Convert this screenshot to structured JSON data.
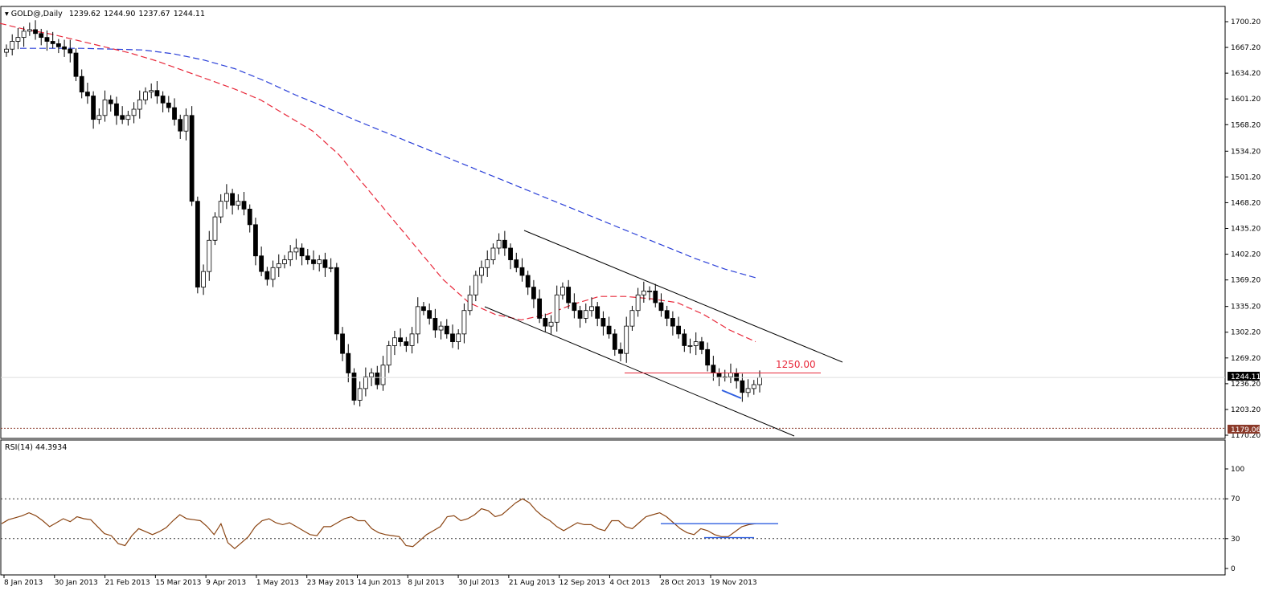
{
  "header": {
    "symbol": "GOLD@,Daily",
    "open": "1239.62",
    "high": "1244.90",
    "low": "1237.67",
    "close": "1244.11"
  },
  "rsi_header": "RSI(14) 44.3934",
  "price_badge": "1244.11",
  "support_badge": "1179.06",
  "resistance_label": "1250.00",
  "colors": {
    "ma_fast": "#e8283a",
    "ma_slow": "#2a3fd8",
    "rsi_line": "#8b4513",
    "trend_blue": "#2f5fe0",
    "level_red": "#e8283a",
    "candle": "#000000"
  },
  "chart_data": [
    {
      "type": "candlestick",
      "symbol": "GOLD@",
      "timeframe": "Daily",
      "ylim": [
        1170.2,
        1716.0
      ],
      "y_ticks": [
        "1700.20",
        "1667.20",
        "1634.20",
        "1601.20",
        "1568.20",
        "1534.20",
        "1501.20",
        "1468.20",
        "1435.20",
        "1402.20",
        "1369.20",
        "1335.20",
        "1302.20",
        "1269.20",
        "1236.20",
        "1203.20",
        "1170.20"
      ],
      "x_ticks": [
        "8 Jan 2013",
        "30 Jan 2013",
        "21 Feb 2013",
        "15 Mar 2013",
        "9 Apr 2013",
        "1 May 2013",
        "23 May 2013",
        "14 Jun 2013",
        "8 Jul 2013",
        "30 Jul 2013",
        "21 Aug 2013",
        "12 Sep 2013",
        "4 Oct 2013",
        "28 Oct 2013",
        "19 Nov 2013"
      ],
      "close_series": [
        1665,
        1675,
        1680,
        1688,
        1690,
        1685,
        1680,
        1675,
        1672,
        1668,
        1665,
        1660,
        1630,
        1610,
        1605,
        1575,
        1580,
        1600,
        1595,
        1580,
        1575,
        1580,
        1588,
        1600,
        1610,
        1612,
        1605,
        1596,
        1590,
        1575,
        1560,
        1580,
        1470,
        1360,
        1380,
        1420,
        1450,
        1470,
        1480,
        1465,
        1470,
        1460,
        1440,
        1400,
        1380,
        1370,
        1385,
        1390,
        1395,
        1405,
        1410,
        1400,
        1395,
        1390,
        1395,
        1385,
        1385,
        1300,
        1275,
        1250,
        1215,
        1230,
        1245,
        1250,
        1235,
        1260,
        1285,
        1295,
        1290,
        1285,
        1300,
        1335,
        1330,
        1320,
        1305,
        1310,
        1300,
        1290,
        1300,
        1330,
        1350,
        1375,
        1385,
        1395,
        1410,
        1420,
        1410,
        1395,
        1385,
        1375,
        1360,
        1345,
        1320,
        1310,
        1315,
        1350,
        1360,
        1340,
        1330,
        1320,
        1330,
        1335,
        1320,
        1310,
        1300,
        1280,
        1275,
        1310,
        1330,
        1350,
        1355,
        1355,
        1340,
        1330,
        1320,
        1310,
        1300,
        1285,
        1285,
        1290,
        1280,
        1260,
        1250,
        1245,
        1245,
        1250,
        1240,
        1225,
        1230,
        1235,
        1244.11
      ],
      "candle_ohlc_last": {
        "open": 1239.62,
        "high": 1244.9,
        "low": 1237.67,
        "close": 1244.11
      },
      "ma_fast_series": [
        1698,
        1690,
        1684,
        1676,
        1668,
        1660,
        1650,
        1638,
        1626,
        1614,
        1600,
        1580,
        1560,
        1530,
        1490,
        1450,
        1410,
        1370,
        1340,
        1325,
        1318,
        1325,
        1338,
        1348,
        1348,
        1345,
        1340,
        1325,
        1305,
        1290
      ],
      "ma_slow_series": [
        1666,
        1666,
        1666,
        1665,
        1664,
        1659,
        1651,
        1640,
        1624,
        1606,
        1590,
        1573,
        1557,
        1541,
        1525,
        1509,
        1493,
        1477,
        1461,
        1445,
        1429,
        1413,
        1397,
        1383,
        1372
      ],
      "channel_upper": {
        "from": [
          "21 Aug 2013",
          1435
        ],
        "to": [
          "19 Nov 2013",
          1265
        ]
      },
      "channel_lower": {
        "from": [
          "30 Jul 2013",
          1338
        ],
        "to": [
          "19 Nov 2013",
          1170
        ]
      },
      "resistance_level": 1250.0,
      "support_level": 1179.06,
      "last_price": 1244.11,
      "grid": false,
      "legend": "none"
    },
    {
      "type": "line",
      "name": "RSI(14)",
      "last_value": 44.3934,
      "ylim": [
        0,
        100
      ],
      "y_ticks": [
        "100",
        "70",
        "30",
        "0"
      ],
      "levels": [
        70,
        30
      ],
      "series_values": [
        45,
        49,
        51,
        53,
        56,
        53,
        48,
        42,
        46,
        50,
        47,
        52,
        50,
        49,
        42,
        35,
        33,
        25,
        23,
        33,
        40,
        37,
        34,
        37,
        41,
        48,
        54,
        50,
        49,
        48,
        42,
        34,
        45,
        26,
        20,
        26,
        32,
        42,
        48,
        50,
        46,
        44,
        46,
        42,
        38,
        34,
        33,
        42,
        42,
        46,
        50,
        52,
        48,
        48,
        40,
        36,
        34,
        33,
        32,
        23,
        22,
        28,
        34,
        38,
        42,
        52,
        53,
        48,
        50,
        54,
        60,
        58,
        52,
        54,
        60,
        66,
        70,
        66,
        58,
        52,
        48,
        42,
        38,
        42,
        46,
        44,
        44,
        40,
        38,
        48,
        48,
        42,
        40,
        46,
        52,
        54,
        56,
        52,
        46,
        40,
        36,
        34,
        40,
        38,
        34,
        32,
        32,
        37,
        42,
        44,
        45
      ],
      "trend_lines": [
        {
          "from_label": "28 Oct 2013",
          "to_label": "19 Nov 2013",
          "value": 45
        },
        {
          "from_label": "28 Oct 2013",
          "to_label": "19 Nov 2013",
          "value": 31
        }
      ],
      "grid": false,
      "legend": "none"
    }
  ]
}
